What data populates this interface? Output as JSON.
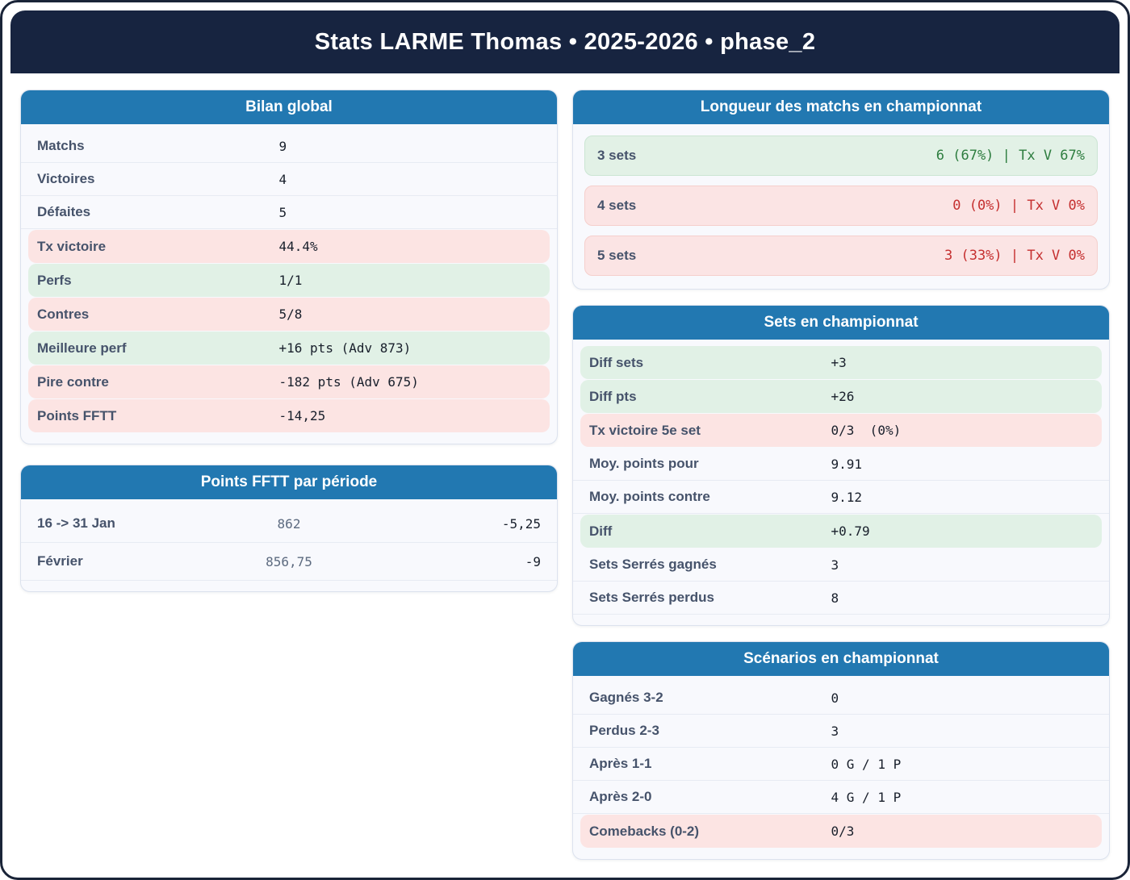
{
  "header": {
    "title": "Stats LARME Thomas • 2025-2026 • phase_2"
  },
  "colors": {
    "navy": "#172440",
    "header_blue": "#2278b1",
    "good_bg": "#e1f1e6",
    "bad_bg": "#fce4e3",
    "good_text": "#2d7d3f",
    "bad_text": "#c53030"
  },
  "cards": {
    "bilan": {
      "title": "Bilan global",
      "rows": [
        {
          "label": "Matchs",
          "value": "9",
          "tone": "plain"
        },
        {
          "label": "Victoires",
          "value": "4",
          "tone": "plain"
        },
        {
          "label": "Défaites",
          "value": "5",
          "tone": "plain"
        },
        {
          "label": "Tx victoire",
          "value": "44.4%",
          "tone": "bad"
        },
        {
          "label": "Perfs",
          "value": "1/1",
          "tone": "good"
        },
        {
          "label": "Contres",
          "value": "5/8",
          "tone": "bad"
        },
        {
          "label": "Meilleure perf",
          "value": "+16 pts (Adv 873)",
          "tone": "good"
        },
        {
          "label": "Pire contre",
          "value": "-182 pts (Adv 675)",
          "tone": "bad"
        },
        {
          "label": "Points FFTT",
          "value": "-14,25",
          "tone": "bad"
        }
      ]
    },
    "periods": {
      "title": "Points FFTT par période",
      "rows": [
        {
          "label": "16 -> 31 Jan",
          "mid": "862",
          "right": "-5,25"
        },
        {
          "label": "Février",
          "mid": "856,75",
          "right": "-9"
        }
      ]
    },
    "longueur": {
      "title": "Longueur des matchs en championnat",
      "rows": [
        {
          "label": "3 sets",
          "value": "6 (67%) | Tx V 67%",
          "tone": "good"
        },
        {
          "label": "4 sets",
          "value": "0 (0%) | Tx V 0%",
          "tone": "bad"
        },
        {
          "label": "5 sets",
          "value": "3 (33%) | Tx V 0%",
          "tone": "bad"
        }
      ]
    },
    "sets": {
      "title": "Sets en championnat",
      "rows": [
        {
          "label": "Diff sets",
          "value": "+3",
          "tone": "good"
        },
        {
          "label": "Diff pts",
          "value": "+26",
          "tone": "good"
        },
        {
          "label": "Tx victoire 5e set",
          "value": "0/3  (0%)",
          "tone": "bad"
        },
        {
          "label": "Moy. points pour",
          "value": "9.91",
          "tone": "plain"
        },
        {
          "label": "Moy. points contre",
          "value": "9.12",
          "tone": "plain"
        },
        {
          "label": "Diff",
          "value": "+0.79",
          "tone": "good"
        },
        {
          "label": "Sets Serrés gagnés",
          "value": "3",
          "tone": "plain"
        },
        {
          "label": "Sets Serrés perdus",
          "value": "8",
          "tone": "plain"
        }
      ]
    },
    "scenarios": {
      "title": "Scénarios en championnat",
      "rows": [
        {
          "label": "Gagnés 3-2",
          "value": "0",
          "tone": "plain"
        },
        {
          "label": "Perdus 2-3",
          "value": "3",
          "tone": "plain"
        },
        {
          "label": "Après 1-1",
          "value": "0 G / 1 P",
          "tone": "plain"
        },
        {
          "label": "Après 2-0",
          "value": "4 G / 1 P",
          "tone": "plain"
        },
        {
          "label": "Comebacks (0-2)",
          "value": "0/3",
          "tone": "bad"
        }
      ]
    }
  }
}
